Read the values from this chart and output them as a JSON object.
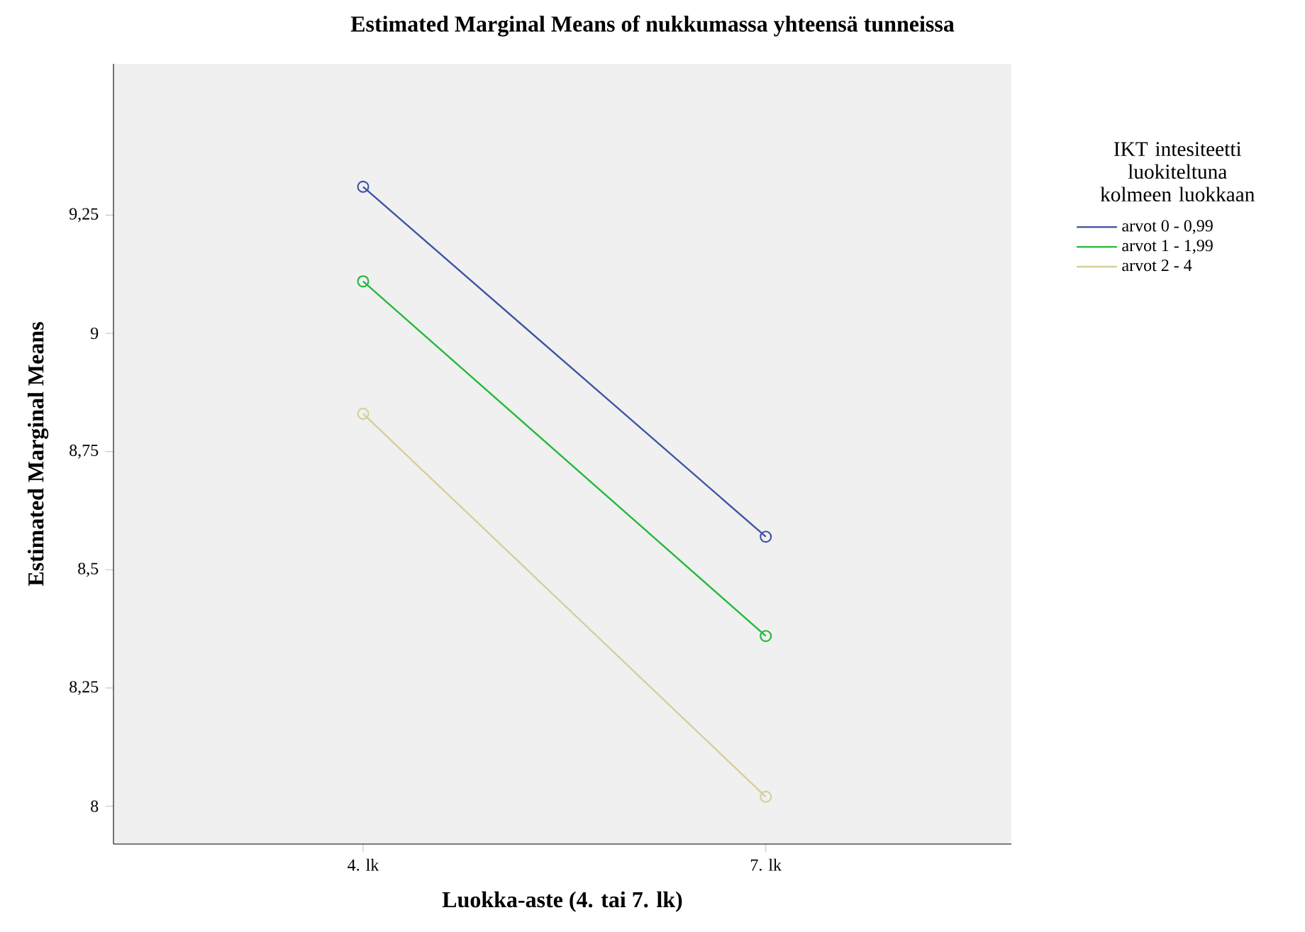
{
  "chart_data": {
    "type": "line",
    "title": "Estimated Marginal Means of nukkumassa yhteensä tunneissa",
    "xlabel": "Luokka-aste (4. tai 7. lk)",
    "ylabel": "Estimated Marginal Means",
    "legend_title": "IKT intesiteetti luokiteltuna kolmeen luokkaan",
    "categories": [
      "4. lk",
      "7. lk"
    ],
    "series": [
      {
        "name": "arvot 0 - 0,99",
        "color": "#3e53a4",
        "values": [
          9.31,
          8.57
        ]
      },
      {
        "name": "arvot 1 - 1,99",
        "color": "#24b93b",
        "values": [
          9.11,
          8.36
        ]
      },
      {
        "name": "arvot 2 - 4",
        "color": "#d6cf9b",
        "values": [
          8.83,
          8.02
        ]
      }
    ],
    "ylim": [
      7.92,
      9.57
    ],
    "yticks": [
      {
        "value": 8,
        "label": "8"
      },
      {
        "value": 8.25,
        "label": "8,25"
      },
      {
        "value": 8.5,
        "label": "8,5"
      },
      {
        "value": 8.75,
        "label": "8,75"
      },
      {
        "value": 9,
        "label": "9"
      },
      {
        "value": 9.25,
        "label": "9,25"
      }
    ],
    "marker": "circle",
    "legend": "right"
  }
}
